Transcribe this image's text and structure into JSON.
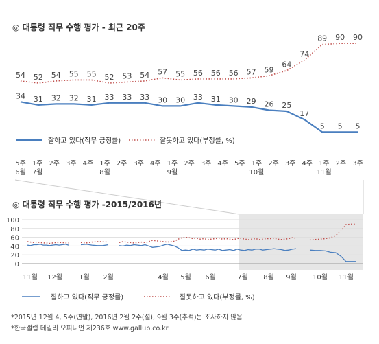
{
  "colors": {
    "approve": "#4a7fbf",
    "disapprove": "#c0504d",
    "shade": "#e6e6e6",
    "text": "#333333",
    "axis": "#999999"
  },
  "chart_data": [
    {
      "type": "line",
      "title": "◎ 대통령 직무 수행 평가 - 최근 20주",
      "x_ticks": [
        {
          "lines": [
            "5주",
            "6월"
          ]
        },
        {
          "lines": [
            "1주",
            "7월"
          ]
        },
        {
          "lines": [
            "2주"
          ]
        },
        {
          "lines": [
            "3주"
          ]
        },
        {
          "lines": [
            "4주"
          ]
        },
        {
          "lines": [
            "1주",
            "8월"
          ]
        },
        {
          "lines": [
            "2주"
          ]
        },
        {
          "lines": [
            "3주"
          ]
        },
        {
          "lines": [
            "4주"
          ]
        },
        {
          "lines": [
            "1주",
            "9월"
          ]
        },
        {
          "lines": [
            "2주"
          ]
        },
        {
          "lines": [
            "3주"
          ]
        },
        {
          "lines": [
            "4주"
          ]
        },
        {
          "lines": [
            "5주"
          ]
        },
        {
          "lines": [
            "1주",
            "10월"
          ]
        },
        {
          "lines": [
            "2주"
          ]
        },
        {
          "lines": [
            "3주"
          ]
        },
        {
          "lines": [
            "4주"
          ]
        },
        {
          "lines": [
            "1주",
            "11월"
          ]
        },
        {
          "lines": [
            "2주"
          ]
        },
        {
          "lines": [
            "3주"
          ]
        }
      ],
      "series": [
        {
          "name": "잘하고 있다(직무 긍정률)",
          "style": "solid",
          "labels": [
            34,
            31,
            32,
            32,
            31,
            33,
            33,
            33,
            30,
            30,
            33,
            31,
            30,
            29,
            26,
            25,
            17,
            5,
            5,
            5
          ]
        },
        {
          "name": "잘못하고 있다(부정률, %)",
          "style": "dotted",
          "labels": [
            54,
            52,
            54,
            55,
            55,
            52,
            53,
            54,
            57,
            55,
            56,
            56,
            56,
            57,
            59,
            64,
            74,
            89,
            90,
            90
          ]
        }
      ],
      "ylim": [
        0,
        100
      ]
    },
    {
      "type": "line",
      "title": "◎ 대통령 직무 수행 평가 -2015/2016년",
      "y_ticks": [
        "100",
        "80",
        "60",
        "40",
        "20",
        "0"
      ],
      "ylim": [
        0,
        100
      ],
      "x_ticks": [
        "11월",
        "12월",
        "1월",
        "2월",
        "4월",
        "5월",
        "6월",
        "7월",
        "8월",
        "9월",
        "10월",
        "11월"
      ],
      "shaded": {
        "from": "7월",
        "to": "11월"
      },
      "series": [
        {
          "name": "잘하고 있다(직무 긍정률)",
          "style": "solid",
          "segments": [
            [
              42,
              41,
              43,
              43,
              44,
              42,
              42,
              41,
              42,
              43,
              42,
              43,
              44,
              42
            ],
            [
              43,
              44,
              42,
              41,
              41,
              43
            ],
            [
              41,
              40,
              42,
              41,
              43,
              42,
              41,
              43,
              40,
              37,
              38,
              39,
              42,
              44,
              42,
              40,
              36,
              30,
              31,
              30,
              33,
              31,
              32,
              31,
              33,
              32,
              31,
              33,
              30,
              31,
              32,
              30,
              33,
              31,
              30,
              32,
              31,
              33,
              33,
              31,
              32,
              33,
              34,
              33,
              32,
              30,
              31,
              33,
              34
            ],
            [
              31,
              30,
              30,
              29,
              26,
              25,
              17,
              5,
              5,
              5
            ]
          ]
        },
        {
          "name": "잘못하고 있다(부정률, %)",
          "style": "dotted",
          "segments": [
            [
              50,
              49,
              48,
              49,
              48,
              47,
              47,
              46,
              47,
              48,
              48,
              48,
              47,
              47
            ],
            [
              48,
              47,
              49,
              50,
              50,
              49
            ],
            [
              48,
              50,
              49,
              48,
              47,
              48,
              49,
              48,
              50,
              53,
              52,
              51,
              50,
              49,
              50,
              51,
              56,
              59,
              60,
              59,
              57,
              58,
              56,
              57,
              55,
              56,
              57,
              58,
              56,
              57,
              56,
              55,
              57,
              58,
              56,
              55,
              56,
              57,
              55,
              56,
              57,
              57,
              58,
              56,
              55,
              56,
              57,
              59,
              58
            ],
            [
              54,
              55,
              56,
              57,
              59,
              64,
              74,
              89,
              90,
              90
            ]
          ]
        }
      ]
    }
  ],
  "footnotes": [
    "*2015년 12월 4, 5주(연말), 2016년 2월 2주(설), 9월 3주(추석)는 조사하지 않음",
    "*한국갤럽 데일리 오피니언 제236호 www.gallup.co.kr"
  ]
}
